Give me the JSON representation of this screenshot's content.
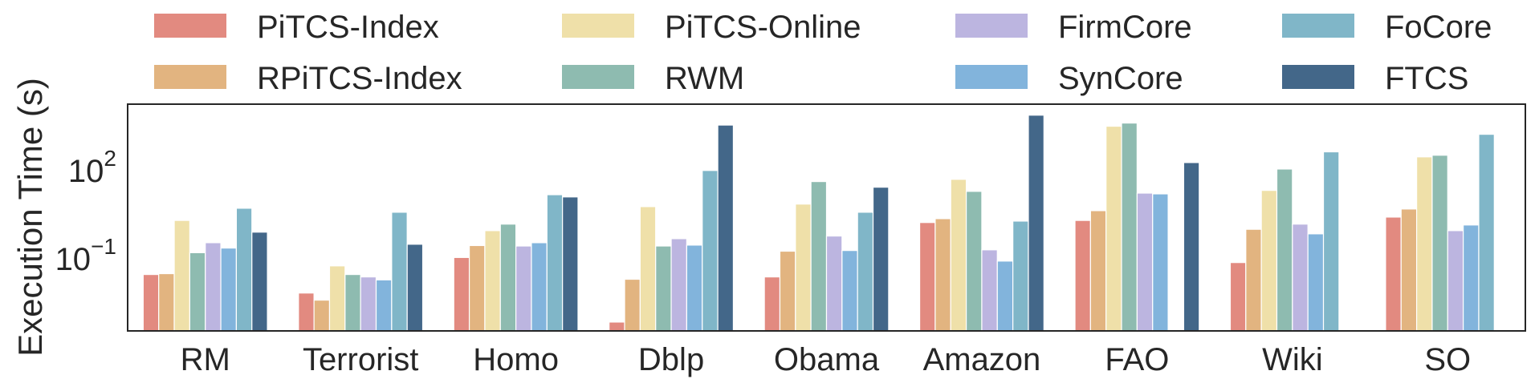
{
  "chart_data": {
    "type": "bar",
    "title": "",
    "xlabel": "",
    "ylabel": "Execution Time (s)",
    "yscale": "log",
    "ylim": [
      0.00035,
      18000
    ],
    "yticks": [
      {
        "value": 100,
        "base": "10",
        "exp": "2"
      },
      {
        "value": 0.1,
        "base": "10",
        "exp": "−1"
      }
    ],
    "grid": false,
    "legend_position": "top",
    "categories": [
      "RM",
      "Terrorist",
      "Homo",
      "Dblp",
      "Obama",
      "Amazon",
      "FAO",
      "Wiki",
      "SO"
    ],
    "series": [
      {
        "name": "PiTCS-Index",
        "color": "#e28a80",
        "values": [
          0.029,
          0.0068,
          0.11,
          0.0007,
          0.024,
          1.7,
          2.0,
          0.074,
          2.6
        ]
      },
      {
        "name": "RPiTCS-Index",
        "color": "#e2b480",
        "values": [
          0.031,
          0.0039,
          0.28,
          0.02,
          0.18,
          2.3,
          4.3,
          1.0,
          4.9
        ]
      },
      {
        "name": "PiTCS-Online",
        "color": "#efe0a9",
        "values": [
          2.0,
          0.057,
          0.9,
          5.9,
          7.2,
          50,
          3200,
          21,
          290
        ]
      },
      {
        "name": "RWM",
        "color": "#8ebbb0",
        "values": [
          0.16,
          0.029,
          1.5,
          0.27,
          42,
          19.5,
          4100,
          112,
          330
        ]
      },
      {
        "name": "FirmCore",
        "color": "#bcb5e0",
        "values": [
          0.35,
          0.024,
          0.27,
          0.48,
          0.59,
          0.2,
          17,
          1.5,
          0.9
        ]
      },
      {
        "name": "SynCore",
        "color": "#82b4dc",
        "values": [
          0.23,
          0.019,
          0.35,
          0.29,
          0.19,
          0.083,
          16,
          0.7,
          1.4
        ]
      },
      {
        "name": "FoCore",
        "color": "#80b6c8",
        "values": [
          5.2,
          3.8,
          15,
          100,
          3.8,
          1.9,
          null,
          430,
          1700
        ]
      },
      {
        "name": "FTCS",
        "color": "#436789",
        "values": [
          0.8,
          0.31,
          12.6,
          3500,
          27,
          7600,
          186,
          null,
          null
        ]
      }
    ]
  }
}
